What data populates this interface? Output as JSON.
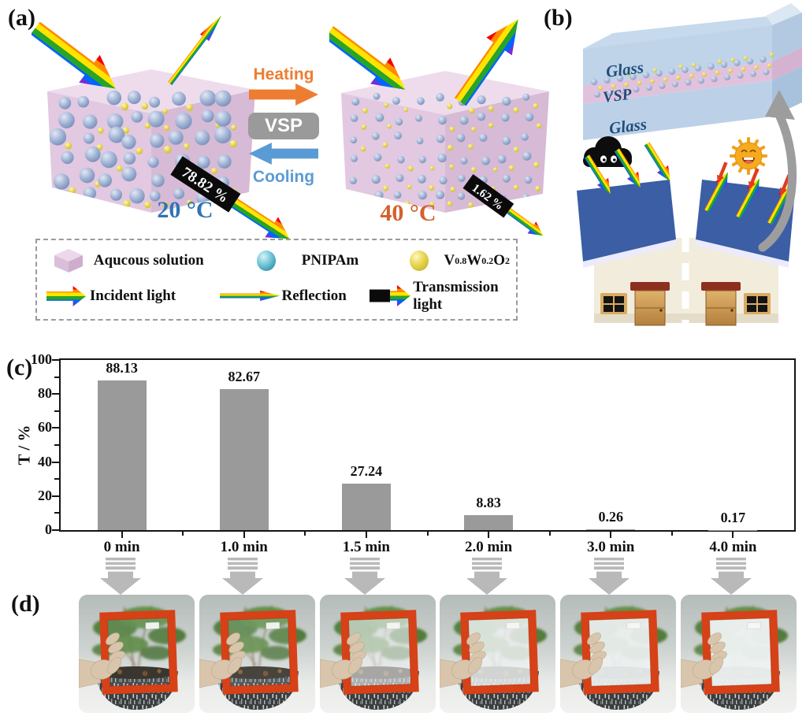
{
  "colors": {
    "heating": "#ed7d31",
    "cooling": "#5b9bd5",
    "cold_temp": "#2e74b5",
    "hot_temp": "#d2622a",
    "vsp_badge": "#9a9a9a",
    "bar": "#9a9a9a",
    "frame_red": "#d64118",
    "roof_blue": "#3b5ea5",
    "arrow_gray": "#b9b9b9",
    "glass_blue": "#b6cde6",
    "vsp_pink": "#e0c2dd"
  },
  "panel_a": {
    "label": "(a)",
    "heating": "Heating",
    "vsp": "VSP",
    "cooling": "Cooling",
    "cold_temp": "20 °C",
    "hot_temp": "40 °C",
    "cold_transmission": "78.82 %",
    "hot_transmission": "1.62 %",
    "legend": {
      "aqueous": "Aqucous solution",
      "pnipam": "PNIPAm",
      "vwo": [
        "V",
        "0.8",
        "W",
        "0.2",
        "O",
        "2"
      ],
      "incident": "Incident light",
      "reflection": "Reflection",
      "transmission": "Transmission light"
    }
  },
  "panel_b": {
    "label": "(b)",
    "layers": [
      "Glass",
      "VSP",
      "Glass"
    ]
  },
  "panel_c": {
    "label": "(c)"
  },
  "chart_data": {
    "type": "bar",
    "categories": [
      "0 min",
      "1.0 min",
      "1.5 min",
      "2.0 min",
      "3.0 min",
      "4.0 min"
    ],
    "values": [
      88.13,
      82.67,
      27.24,
      8.83,
      0.26,
      0.17
    ],
    "value_labels": [
      "88.13",
      "82.67",
      "27.24",
      "8.83",
      "0.26",
      "0.17"
    ],
    "title": "",
    "xlabel": "",
    "ylabel": "T / %",
    "ylim": [
      0,
      100
    ],
    "yticks": [
      0,
      20,
      40,
      60,
      80,
      100
    ],
    "bar_color": "#9a9a9a",
    "grid": false,
    "legend_position": "none"
  },
  "panel_d": {
    "label": "(d)",
    "photos": [
      {
        "frost": 0.03
      },
      {
        "frost": 0.1
      },
      {
        "frost": 0.62
      },
      {
        "frost": 0.85
      },
      {
        "frost": 0.93
      },
      {
        "frost": 0.96
      }
    ]
  }
}
